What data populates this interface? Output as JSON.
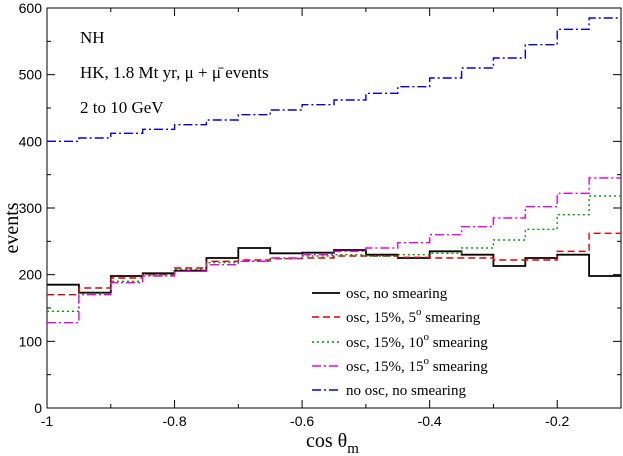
{
  "chart_data": {
    "type": "line",
    "title": "",
    "xlabel": "cos θm",
    "ylabel": "events",
    "xlim": [
      -1,
      -0.1
    ],
    "ylim": [
      0,
      600
    ],
    "x_ticks": [
      -1,
      -0.8,
      -0.6,
      -0.4,
      -0.2
    ],
    "x_tick_labels": [
      "-1",
      "-0.8",
      "-0.6",
      "-0.4",
      "-0.2"
    ],
    "y_ticks": [
      0,
      100,
      200,
      300,
      400,
      500,
      600
    ],
    "y_tick_labels": [
      "0",
      "100",
      "200",
      "300",
      "400",
      "500",
      "600"
    ],
    "annotations": {
      "line1": "NH",
      "line2": "HK, 1.8 Mt yr, μ + μ̄ events",
      "line3": "2 to 10 GeV"
    },
    "bin_edges": [
      -1,
      -0.95,
      -0.9,
      -0.85,
      -0.8,
      -0.75,
      -0.7,
      -0.65,
      -0.6,
      -0.55,
      -0.5,
      -0.45,
      -0.4,
      -0.35,
      -0.3,
      -0.25,
      -0.2,
      -0.15,
      -0.1
    ],
    "series": [
      {
        "name": "osc, no smearing",
        "color": "#000000",
        "dash": "",
        "values": [
          185,
          173,
          198,
          202,
          206,
          225,
          240,
          232,
          233,
          237,
          230,
          225,
          235,
          230,
          213,
          225,
          230,
          198
        ]
      },
      {
        "name": "osc, 15%, 5o smearing",
        "color": "#e00000",
        "dash": "7,4",
        "values": [
          170,
          180,
          195,
          200,
          210,
          220,
          222,
          224,
          225,
          228,
          228,
          226,
          225,
          225,
          222,
          222,
          235,
          262
        ]
      },
      {
        "name": "osc, 15%, 10o smearing",
        "color": "#009900",
        "dash": "2,3",
        "values": [
          145,
          172,
          190,
          200,
          208,
          218,
          220,
          224,
          228,
          230,
          228,
          230,
          232,
          240,
          252,
          268,
          290,
          318
        ]
      },
      {
        "name": "osc, 15%, 15o smearing",
        "color": "#ee00ee",
        "dash": "9,3,2,3",
        "values": [
          128,
          170,
          188,
          198,
          205,
          215,
          220,
          225,
          230,
          235,
          240,
          248,
          260,
          272,
          285,
          302,
          322,
          345
        ]
      },
      {
        "name": "no osc, no smearing",
        "color": "#0000ee",
        "dash": "9,3,2,3",
        "values": [
          400,
          405,
          412,
          418,
          425,
          432,
          440,
          447,
          455,
          462,
          472,
          482,
          495,
          510,
          525,
          545,
          568,
          585
        ]
      }
    ],
    "legend": {
      "placement": "bottom-right",
      "entries": [
        {
          "label": "osc, no smearing"
        },
        {
          "label": "osc, 15%, 5",
          "sup": "o",
          "suffix": " smearing"
        },
        {
          "label": "osc, 15%, 10",
          "sup": "o",
          "suffix": " smearing"
        },
        {
          "label": "osc, 15%, 15",
          "sup": "o",
          "suffix": " smearing"
        },
        {
          "label": "no osc, no smearing"
        }
      ]
    }
  }
}
